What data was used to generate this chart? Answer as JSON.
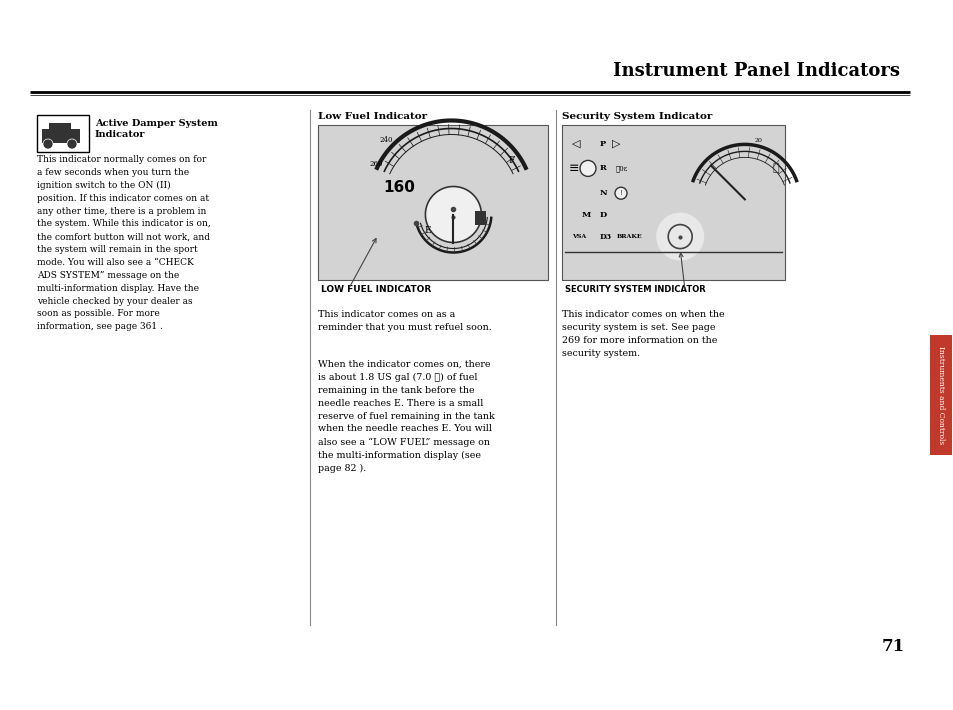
{
  "page_bg": "#ffffff",
  "title": "Instrument Panel Indicators",
  "title_fontsize": 13,
  "page_number": "71",
  "sidebar_color": "#c0392b",
  "sidebar_text": "Instruments and Controls",
  "hr_color": "#000000",
  "section1_heading_line1": "Active Damper System",
  "section1_heading_line2": "Indicator",
  "section1_body": "This indicator normally comes on for\na few seconds when you turn the\nignition switch to the ON (II)\nposition. If this indicator comes on at\nany other time, there is a problem in\nthe system. While this indicator is on,\nthe comfort button will not work, and\nthe system will remain in the sport\nmode. You will also see a “CHECK\nADS SYSTEM” message on the\nmulti-information display. Have the\nvehicle checked by your dealer as\nsoon as possible. For more\ninformation, see page 361 .",
  "section2_heading": "Low Fuel Indicator",
  "section2_img_label": "LOW FUEL INDICATOR",
  "section2_body1": "This indicator comes on as a\nreminder that you must refuel soon.",
  "section2_body2": "When the indicator comes on, there\nis about 1.8 US gal (7.0 ℓ) of fuel\nremaining in the tank before the\nneedle reaches E. There is a small\nreserve of fuel remaining in the tank\nwhen the needle reaches E. You will\nalso see a “LOW FUEL” message on\nthe multi-information display (see\npage 82 ).",
  "section3_heading": "Security System Indicator",
  "section3_img_label": "SECURITY SYSTEM INDICATOR",
  "section3_body": "This indicator comes on when the\nsecurity system is set. See page\n269 for more information on the\nsecurity system.",
  "img2_bg": "#d3d3d3",
  "img3_bg": "#d3d3d3"
}
